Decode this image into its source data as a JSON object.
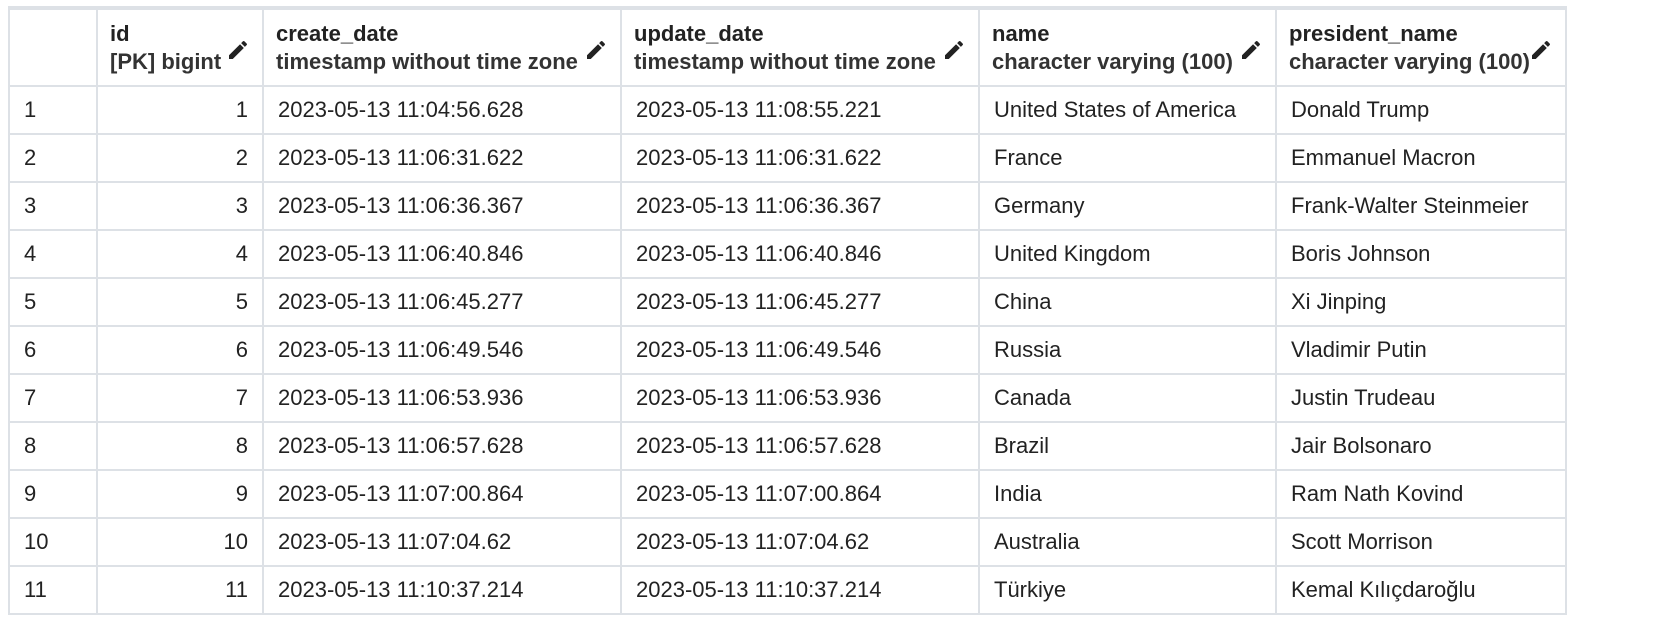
{
  "columns": [
    {
      "key": "id",
      "name": "id",
      "type": "[PK] bigint"
    },
    {
      "key": "create_date",
      "name": "create_date",
      "type": "timestamp without time zone"
    },
    {
      "key": "update_date",
      "name": "update_date",
      "type": "timestamp without time zone"
    },
    {
      "key": "name",
      "name": "name",
      "type": "character varying (100)"
    },
    {
      "key": "president_name",
      "name": "president_name",
      "type": "character varying (100)"
    }
  ],
  "rows": [
    {
      "rownum": "1",
      "id": "1",
      "create_date": "2023-05-13 11:04:56.628",
      "update_date": "2023-05-13 11:08:55.221",
      "name": "United States of America",
      "president_name": "Donald Trump"
    },
    {
      "rownum": "2",
      "id": "2",
      "create_date": "2023-05-13 11:06:31.622",
      "update_date": "2023-05-13 11:06:31.622",
      "name": "France",
      "president_name": "Emmanuel Macron"
    },
    {
      "rownum": "3",
      "id": "3",
      "create_date": "2023-05-13 11:06:36.367",
      "update_date": "2023-05-13 11:06:36.367",
      "name": "Germany",
      "president_name": "Frank-Walter Steinmeier"
    },
    {
      "rownum": "4",
      "id": "4",
      "create_date": "2023-05-13 11:06:40.846",
      "update_date": "2023-05-13 11:06:40.846",
      "name": "United Kingdom",
      "president_name": "Boris Johnson"
    },
    {
      "rownum": "5",
      "id": "5",
      "create_date": "2023-05-13 11:06:45.277",
      "update_date": "2023-05-13 11:06:45.277",
      "name": "China",
      "president_name": "Xi Jinping"
    },
    {
      "rownum": "6",
      "id": "6",
      "create_date": "2023-05-13 11:06:49.546",
      "update_date": "2023-05-13 11:06:49.546",
      "name": "Russia",
      "president_name": "Vladimir Putin"
    },
    {
      "rownum": "7",
      "id": "7",
      "create_date": "2023-05-13 11:06:53.936",
      "update_date": "2023-05-13 11:06:53.936",
      "name": "Canada",
      "president_name": "Justin Trudeau"
    },
    {
      "rownum": "8",
      "id": "8",
      "create_date": "2023-05-13 11:06:57.628",
      "update_date": "2023-05-13 11:06:57.628",
      "name": "Brazil",
      "president_name": "Jair Bolsonaro"
    },
    {
      "rownum": "9",
      "id": "9",
      "create_date": "2023-05-13 11:07:00.864",
      "update_date": "2023-05-13 11:07:00.864",
      "name": "India",
      "president_name": "Ram Nath Kovind"
    },
    {
      "rownum": "10",
      "id": "10",
      "create_date": "2023-05-13 11:07:04.62",
      "update_date": "2023-05-13 11:07:04.62",
      "name": "Australia",
      "president_name": "Scott Morrison"
    },
    {
      "rownum": "11",
      "id": "11",
      "create_date": "2023-05-13 11:10:37.214",
      "update_date": "2023-05-13 11:10:37.214",
      "name": "Türkiye",
      "president_name": "Kemal Kılıçdaroğlu"
    }
  ],
  "icons": {
    "edit": "pencil-icon"
  },
  "colors": {
    "grid_line": "#dde1e6",
    "text": "#222222"
  }
}
